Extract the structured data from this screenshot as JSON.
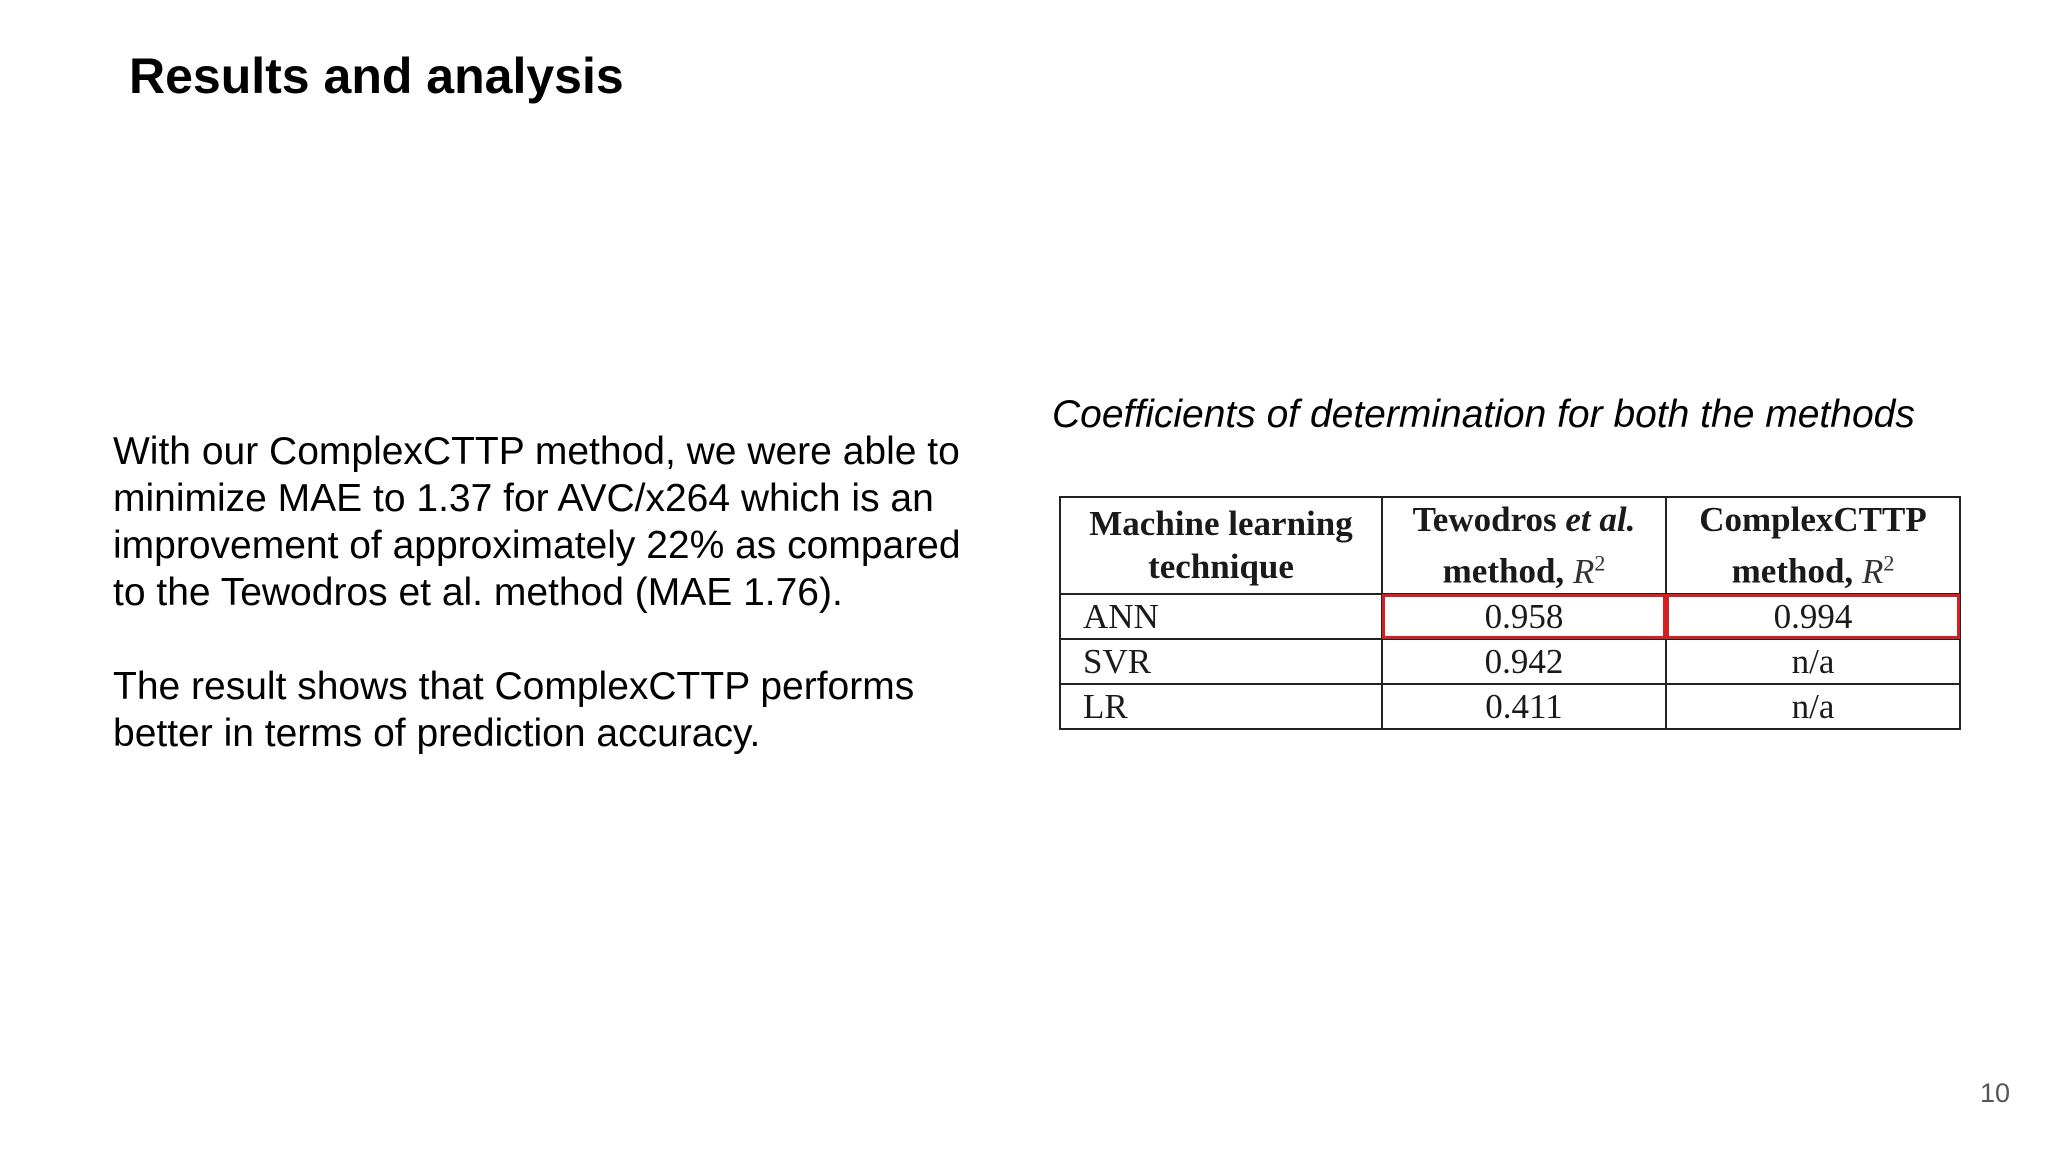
{
  "slide": {
    "title": "Results and analysis",
    "paragraphs": [
      "With our ComplexCTTP method, we were able to\nminimize MAE to 1.37 for AVC/x264 which is an\nimprovement of approximately 22% as compared\nto the Tewodros et al. method (MAE 1.76).",
      "The result shows that ComplexCTTP performs\nbetter in terms of prediction accuracy."
    ],
    "page_number": "10"
  },
  "table": {
    "caption": "Coefficients of determination for both the methods",
    "headers": {
      "technique_line1": "Machine learning",
      "technique_line2": "technique",
      "tewodros_name": "Tewodros ",
      "tewodros_etal": "et al.",
      "tewodros_line2": "method, ",
      "complex_line1": "ComplexCTTP",
      "complex_line2": "method, ",
      "r2_symbol": "R",
      "r2_exponent": "2"
    },
    "rows": [
      {
        "technique": "ANN",
        "tewodros": "0.958",
        "complex": "0.994",
        "highlighted": true
      },
      {
        "technique": "SVR",
        "tewodros": "0.942",
        "complex": "n/a",
        "highlighted": false
      },
      {
        "technique": "LR",
        "tewodros": "0.411",
        "complex": "n/a",
        "highlighted": false
      }
    ],
    "highlight_color": "#d42020"
  }
}
